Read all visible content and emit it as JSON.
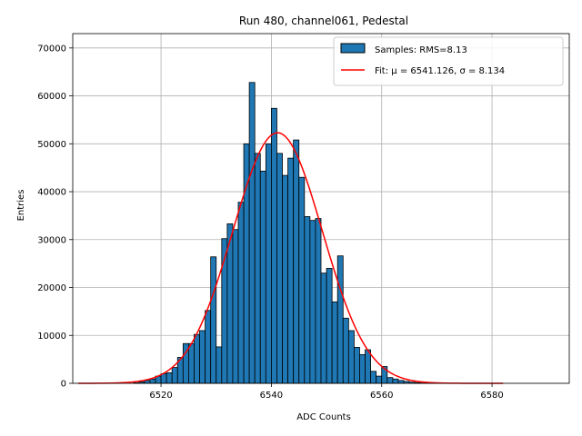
{
  "chart_data": {
    "type": "bar",
    "title": "Run 480, channel061, Pedestal",
    "xlabel": "ADC Counts",
    "ylabel": "Entries",
    "xlim": [
      6504,
      6594
    ],
    "ylim": [
      0,
      73000
    ],
    "xticks": [
      6520,
      6540,
      6560,
      6580
    ],
    "yticks": [
      0,
      10000,
      20000,
      30000,
      40000,
      50000,
      60000,
      70000
    ],
    "grid": true,
    "legend_position": "top-right",
    "bin_width": 1,
    "bin_starts": [
      6515,
      6516,
      6517,
      6518,
      6519,
      6520,
      6521,
      6522,
      6523,
      6524,
      6525,
      6526,
      6527,
      6528,
      6529,
      6530,
      6531,
      6532,
      6533,
      6534,
      6535,
      6536,
      6537,
      6538,
      6539,
      6540,
      6541,
      6542,
      6543,
      6544,
      6545,
      6546,
      6547,
      6548,
      6549,
      6550,
      6551,
      6552,
      6553,
      6554,
      6555,
      6556,
      6557,
      6558,
      6559,
      6560,
      6561,
      6562,
      6563,
      6564,
      6565,
      6566,
      6567,
      6568,
      6569
    ],
    "counts": [
      100,
      300,
      600,
      900,
      1500,
      2000,
      2200,
      3300,
      5400,
      8300,
      8300,
      10200,
      11000,
      15200,
      26400,
      7600,
      30200,
      33300,
      32100,
      37800,
      50000,
      62800,
      48000,
      44300,
      50000,
      57400,
      48000,
      43400,
      47000,
      50800,
      43000,
      34800,
      34000,
      34400,
      23000,
      24000,
      17000,
      26600,
      13600,
      11000,
      7500,
      6000,
      7000,
      2500,
      1500,
      3500,
      1200,
      900,
      600,
      400,
      250,
      150,
      80,
      40,
      20
    ],
    "series": [
      {
        "name": "Samples: RMS=8.13",
        "kind": "histogram",
        "color": "#1f77b4",
        "edge_color": "#000000"
      },
      {
        "name": "Fit: μ = 6541.126, σ = 8.134",
        "kind": "line",
        "color": "#ff0000",
        "mu": 6541.126,
        "sigma": 8.134,
        "amplitude": 52300,
        "x_range": [
          6505,
          6582
        ]
      }
    ]
  }
}
